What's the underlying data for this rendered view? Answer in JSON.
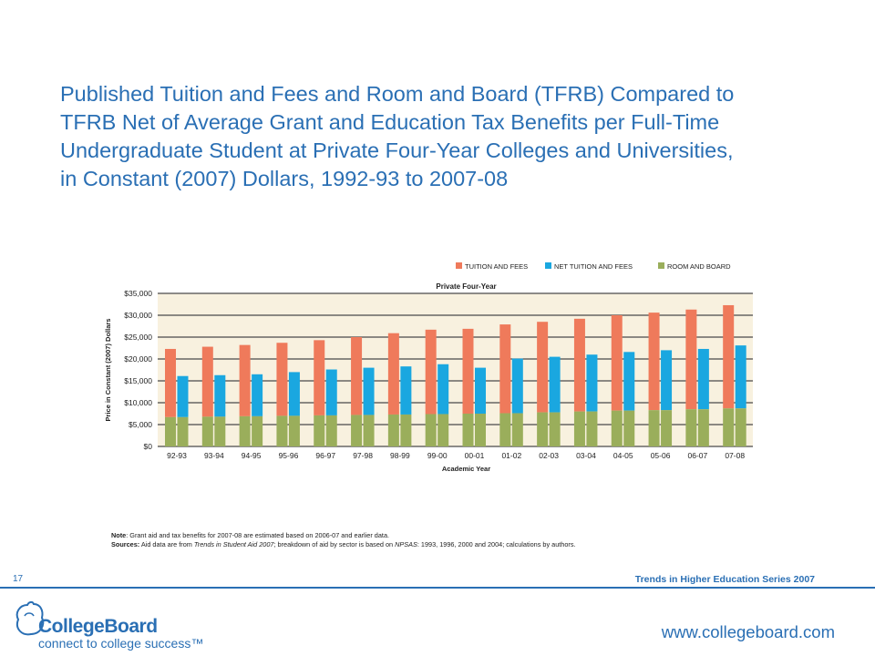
{
  "slide": {
    "title_lines": [
      "Published Tuition and Fees and Room and Board (TFRB) Compared to",
      "TFRB Net of Average Grant and Education Tax Benefits per Full-Time",
      "Undergraduate Student at Private Four-Year Colleges and Universities,",
      "in Constant (2007) Dollars, 1992-93 to 2007-08"
    ],
    "page_number": "17",
    "series": "Trends in Higher Education Series 2007",
    "website": "www.collegeboard.com"
  },
  "logo": {
    "name": "CollegeBoard",
    "tagline": "connect to college success™"
  },
  "notes": {
    "note_label": "Note",
    "note_text": ": Grant aid and tax benefits for 2007-08 are estimated based on 2006-07 and earlier data.",
    "sources_label": "Sources:",
    "sources_pre": " Aid data are from ",
    "sources_em1": "Trends in Student Aid 2007",
    "sources_mid": "; breakdown of aid by sector is based on ",
    "sources_em2": "NPSAS",
    "sources_post": ": 1993, 1996, 2000 and 2004; calculations by authors."
  },
  "colors": {
    "tuition": "#ef7a5b",
    "net": "#1aa7e0",
    "room": "#9aae5b",
    "brand": "#2a6fb4",
    "plot_bg": "#f8f1df"
  },
  "chart_data": {
    "type": "bar",
    "title": "Private Four-Year",
    "xlabel": "Academic Year",
    "ylabel": "Price in Constant (2007) Dollars",
    "ylim": [
      0,
      35000
    ],
    "yticks": [
      0,
      5000,
      10000,
      15000,
      20000,
      25000,
      30000,
      35000
    ],
    "ytick_labels": [
      "$0",
      "$5,000",
      "$10,000",
      "$15,000",
      "$20,000",
      "$25,000",
      "$30,000",
      "$35,000"
    ],
    "legend_position": "top-right",
    "categories": [
      "92-93",
      "93-94",
      "94-95",
      "95-96",
      "96-97",
      "97-98",
      "98-99",
      "99-00",
      "00-01",
      "01-02",
      "02-03",
      "03-04",
      "04-05",
      "05-06",
      "06-07",
      "07-08"
    ],
    "series": [
      {
        "name": "TUITION AND FEES",
        "color_key": "tuition",
        "values": [
          22300,
          22800,
          23200,
          23700,
          24300,
          25000,
          25900,
          26700,
          26900,
          27900,
          28500,
          29200,
          30000,
          30600,
          31300,
          32300
        ]
      },
      {
        "name": "NET TUITION AND FEES",
        "color_key": "net",
        "values": [
          16100,
          16300,
          16500,
          17000,
          17600,
          18000,
          18300,
          18800,
          18000,
          20100,
          20500,
          21000,
          21600,
          22000,
          22300,
          23100
        ]
      },
      {
        "name": "ROOM AND BOARD",
        "color_key": "room",
        "values": [
          6700,
          6800,
          6900,
          7000,
          7100,
          7200,
          7300,
          7400,
          7500,
          7600,
          7800,
          8000,
          8200,
          8300,
          8500,
          8700
        ]
      }
    ]
  }
}
